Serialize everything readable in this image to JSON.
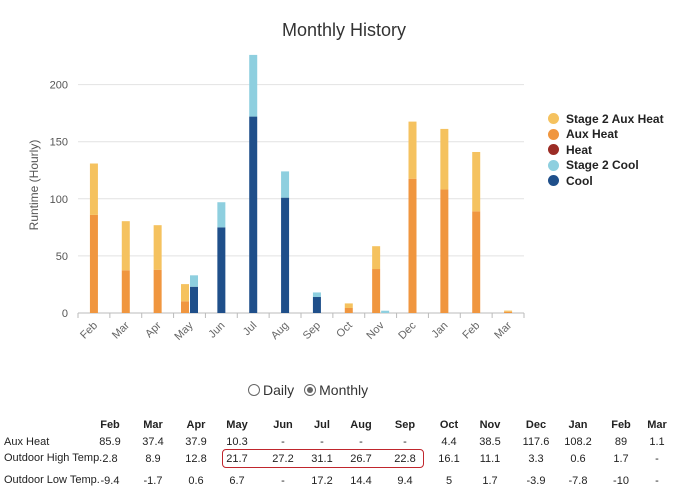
{
  "chart_data": {
    "type": "bar",
    "stacked": true,
    "title": "Monthly History",
    "ylabel": "Runtime (Hourly)",
    "xlabel": "",
    "ylim": [
      0,
      230
    ],
    "yticks": [
      0,
      50,
      100,
      150,
      200
    ],
    "grid": true,
    "legend_position": "right",
    "categories": [
      "Feb",
      "Mar",
      "Apr",
      "May",
      "Jun",
      "Jul",
      "Aug",
      "Sep",
      "Oct",
      "Nov",
      "Dec",
      "Jan",
      "Feb",
      "Mar"
    ],
    "heat_series": [
      {
        "name": "Aux Heat",
        "color": "#f0963f",
        "values": [
          85.9,
          37.4,
          37.9,
          10.3,
          0,
          0,
          0,
          0,
          4.4,
          38.5,
          117.6,
          108.2,
          89,
          1.1
        ]
      },
      {
        "name": "Stage 2 Aux Heat",
        "color": "#f5c25f",
        "values": [
          45,
          43,
          39,
          15,
          0,
          0,
          0,
          0,
          4,
          20,
          50,
          53,
          52,
          1
        ]
      },
      {
        "name": "Heat",
        "color": "#9b2c25",
        "values": [
          0,
          0,
          0,
          0,
          0,
          0,
          0,
          0,
          0,
          0,
          0,
          0,
          0,
          0
        ]
      }
    ],
    "cool_series": [
      {
        "name": "Cool",
        "color": "#1f4f8a",
        "values": [
          0,
          0,
          0,
          23,
          75,
          172,
          101,
          14,
          0,
          0,
          0,
          0,
          0,
          0
        ]
      },
      {
        "name": "Stage 2 Cool",
        "color": "#8ecfdf",
        "values": [
          0,
          0,
          0,
          10,
          22,
          54,
          23,
          4,
          0,
          2,
          0,
          0,
          0,
          0
        ]
      }
    ],
    "legend": [
      {
        "name": "Stage 2 Aux Heat",
        "color": "#f5c25f"
      },
      {
        "name": "Aux Heat",
        "color": "#f0963f"
      },
      {
        "name": "Heat",
        "color": "#9b2c25"
      },
      {
        "name": "Stage 2 Cool",
        "color": "#8ecfdf"
      },
      {
        "name": "Cool",
        "color": "#1f4f8a"
      }
    ]
  },
  "toggle": {
    "daily_label": "Daily",
    "monthly_label": "Monthly",
    "selected": "monthly"
  },
  "table": {
    "headers": [
      "Feb",
      "Mar",
      "Apr",
      "May",
      "Jun",
      "Jul",
      "Aug",
      "Sep",
      "Oct",
      "Nov",
      "Dec",
      "Jan",
      "Feb",
      "Mar"
    ],
    "rows": [
      {
        "label": "Aux Heat",
        "values": [
          "85.9",
          "37.4",
          "37.9",
          "10.3",
          "-",
          "-",
          "-",
          "-",
          "4.4",
          "38.5",
          "117.6",
          "108.2",
          "89",
          "1.1"
        ]
      },
      {
        "label": "Outdoor High Temp.",
        "values": [
          "2.8",
          "8.9",
          "12.8",
          "21.7",
          "27.2",
          "31.1",
          "26.7",
          "22.8",
          "16.1",
          "11.1",
          "3.3",
          "0.6",
          "1.7",
          "-"
        ]
      },
      {
        "label": "Outdoor Low Temp.",
        "values": [
          "-9.4",
          "-1.7",
          "0.6",
          "6.7",
          "-",
          "17.2",
          "14.4",
          "9.4",
          "5",
          "1.7",
          "-3.9",
          "-7.8",
          "-10",
          "-"
        ]
      }
    ]
  }
}
